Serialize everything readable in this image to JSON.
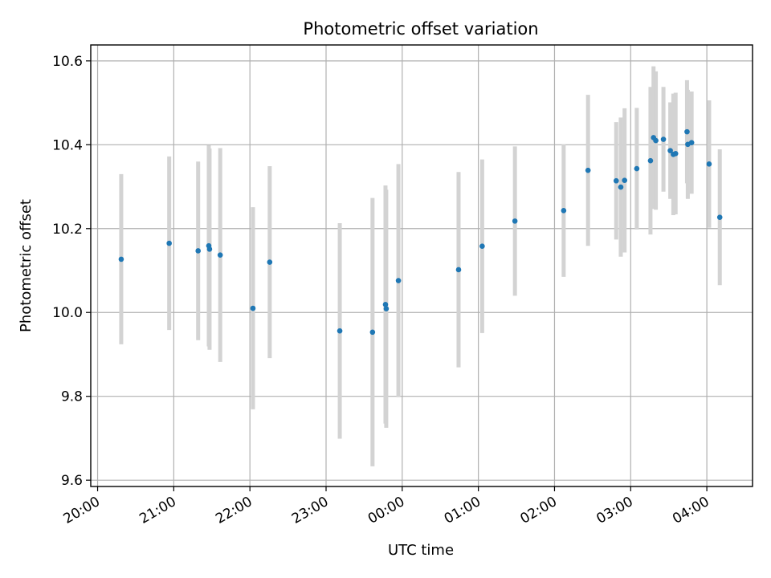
{
  "chart_data": {
    "type": "scatter",
    "title": "Photometric offset variation",
    "xlabel": "UTC time",
    "ylabel": "Photometric offset",
    "x_ticks": [
      "20:00",
      "21:00",
      "22:00",
      "23:00",
      "00:00",
      "01:00",
      "02:00",
      "03:00",
      "04:00"
    ],
    "x_tick_hours": [
      0,
      1,
      2,
      3,
      4,
      5,
      6,
      7,
      8
    ],
    "xlim_hours": [
      -0.09,
      8.6
    ],
    "y_ticks": [
      "9.6",
      "9.8",
      "10.0",
      "10.2",
      "10.4",
      "10.6"
    ],
    "ylim": [
      9.585,
      10.638
    ],
    "grid": true,
    "colors": {
      "marker": "#1f77b4",
      "errorbar": "#d3d3d3"
    },
    "series": [
      {
        "points": [
          {
            "t": 0.31,
            "y": 10.127,
            "yerr": 0.203
          },
          {
            "t": 0.94,
            "y": 10.165,
            "yerr": 0.207
          },
          {
            "t": 1.32,
            "y": 10.147,
            "yerr": 0.213
          },
          {
            "t": 1.46,
            "y": 10.159,
            "yerr": 0.24
          },
          {
            "t": 1.47,
            "y": 10.151,
            "yerr": 0.24
          },
          {
            "t": 1.61,
            "y": 10.137,
            "yerr": 0.255
          },
          {
            "t": 2.04,
            "y": 10.01,
            "yerr": 0.241
          },
          {
            "t": 2.26,
            "y": 10.12,
            "yerr": 0.229
          },
          {
            "t": 3.18,
            "y": 9.956,
            "yerr": 0.257
          },
          {
            "t": 3.61,
            "y": 9.953,
            "yerr": 0.32
          },
          {
            "t": 3.78,
            "y": 10.019,
            "yerr": 0.284
          },
          {
            "t": 3.79,
            "y": 10.009,
            "yerr": 0.284
          },
          {
            "t": 3.95,
            "y": 10.076,
            "yerr": 0.278
          },
          {
            "t": 4.74,
            "y": 10.102,
            "yerr": 0.233
          },
          {
            "t": 5.05,
            "y": 10.158,
            "yerr": 0.207
          },
          {
            "t": 5.48,
            "y": 10.218,
            "yerr": 0.178
          },
          {
            "t": 6.12,
            "y": 10.243,
            "yerr": 0.158
          },
          {
            "t": 6.44,
            "y": 10.339,
            "yerr": 0.18
          },
          {
            "t": 6.81,
            "y": 10.314,
            "yerr": 0.14
          },
          {
            "t": 6.87,
            "y": 10.299,
            "yerr": 0.166
          },
          {
            "t": 6.92,
            "y": 10.315,
            "yerr": 0.172
          },
          {
            "t": 7.08,
            "y": 10.343,
            "yerr": 0.145
          },
          {
            "t": 7.26,
            "y": 10.362,
            "yerr": 0.176
          },
          {
            "t": 7.3,
            "y": 10.417,
            "yerr": 0.17
          },
          {
            "t": 7.33,
            "y": 10.41,
            "yerr": 0.165
          },
          {
            "t": 7.43,
            "y": 10.413,
            "yerr": 0.125
          },
          {
            "t": 7.52,
            "y": 10.386,
            "yerr": 0.115
          },
          {
            "t": 7.56,
            "y": 10.377,
            "yerr": 0.145
          },
          {
            "t": 7.59,
            "y": 10.379,
            "yerr": 0.145
          },
          {
            "t": 7.74,
            "y": 10.431,
            "yerr": 0.123
          },
          {
            "t": 7.75,
            "y": 10.401,
            "yerr": 0.13
          },
          {
            "t": 7.8,
            "y": 10.405,
            "yerr": 0.122
          },
          {
            "t": 8.03,
            "y": 10.354,
            "yerr": 0.152
          },
          {
            "t": 8.17,
            "y": 10.227,
            "yerr": 0.162
          }
        ]
      }
    ]
  }
}
